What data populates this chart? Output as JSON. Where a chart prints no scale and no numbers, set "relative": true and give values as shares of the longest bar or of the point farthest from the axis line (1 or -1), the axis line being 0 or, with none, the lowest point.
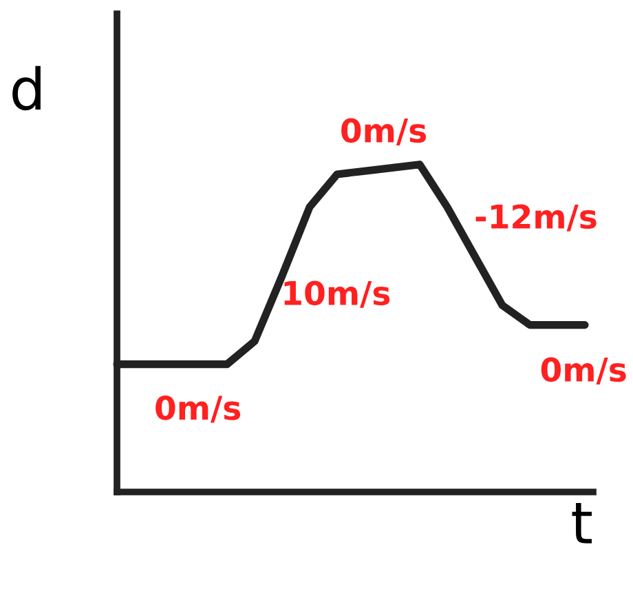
{
  "chart_data": {
    "type": "line",
    "relative": true,
    "xlabel": "t",
    "ylabel": "d",
    "categories": [
      null,
      null,
      null,
      null,
      null,
      null,
      null,
      null,
      null,
      null,
      null,
      null,
      null,
      null,
      null,
      null,
      null,
      null
    ],
    "series": [
      {
        "color": "#222222",
        "values": [
          0.39,
          0.39,
          0.39,
          0.39,
          0.39,
          0.46,
          0.66,
          0.87,
          0.97,
          0.98,
          0.99,
          1,
          0.87,
          0.72,
          0.57,
          0.51,
          0.51,
          0.51
        ]
      }
    ],
    "annotations": [
      "0m/s",
      "-12m/s",
      "10m/s",
      "0m/s",
      "0m/s"
    ],
    "legend": false,
    "marker": "none",
    "line_style": "solid"
  }
}
